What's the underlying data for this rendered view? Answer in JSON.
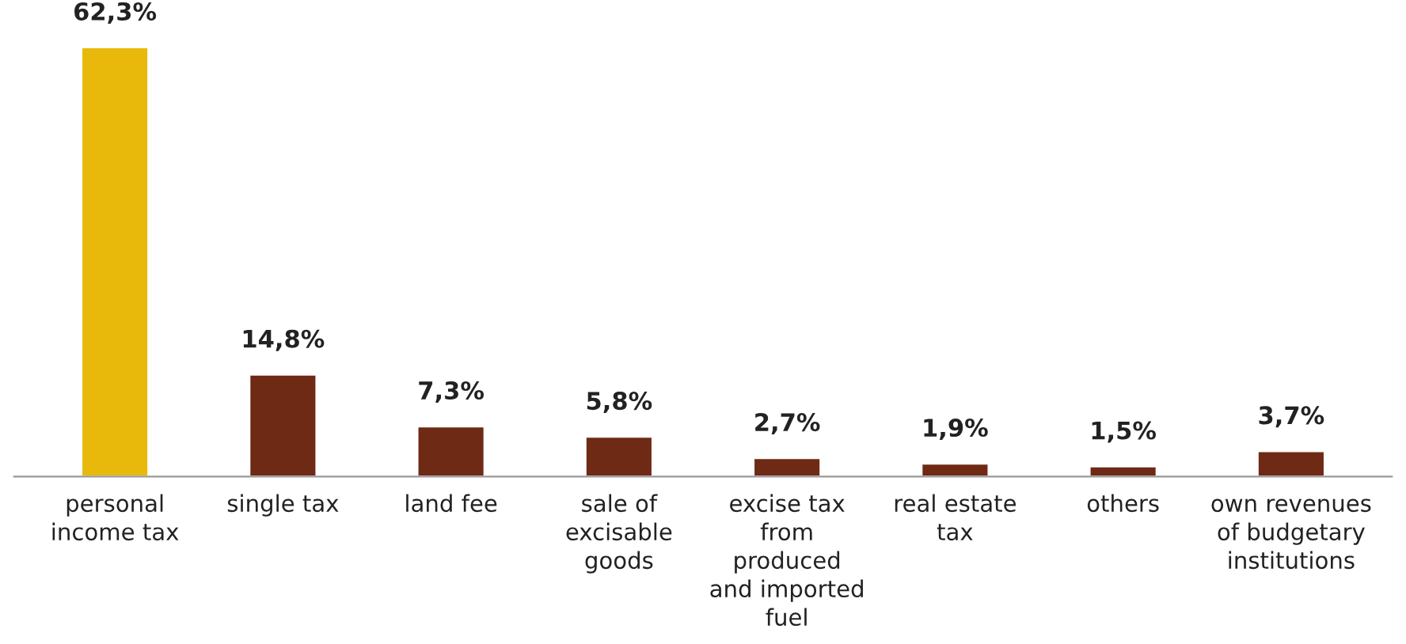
{
  "chart_data": {
    "type": "bar",
    "categories": [
      "personal\nincome tax",
      "single tax",
      "land fee",
      "sale of\nexcisable\ngoods",
      "excise tax\nfrom\nproduced\nand imported\nfuel",
      "real estate\ntax",
      "others",
      "own revenues\nof budgetary\ninstitutions"
    ],
    "values": [
      62.3,
      14.8,
      7.3,
      5.8,
      2.7,
      1.9,
      1.5,
      3.7
    ],
    "colors": [
      "#e8b90a",
      "#6e2a14",
      "#6e2a14",
      "#6e2a14",
      "#6e2a14",
      "#6e2a14",
      "#6e2a14",
      "#6e2a14"
    ],
    "value_labels": [
      "62,3%",
      "14,8%",
      "7,3%",
      "5,8%",
      "2,7%",
      "1,9%",
      "1,5%",
      "3,7%"
    ],
    "grid": false,
    "legend": false
  }
}
